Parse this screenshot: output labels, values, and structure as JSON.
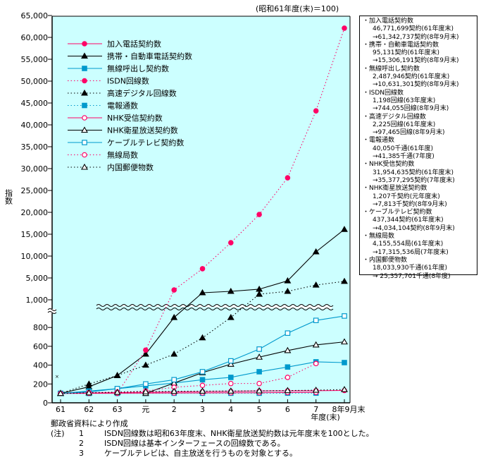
{
  "base_note": "(昭和61年度(末)＝100)",
  "chart_data": {
    "type": "line",
    "title": "",
    "xlabel": "年度(末)",
    "ylabel": "指数",
    "categories": [
      "61",
      "62",
      "63",
      "元",
      "2",
      "3",
      "4",
      "5",
      "6",
      "7",
      "8年9月末"
    ],
    "y_ticks_lower": [
      "0",
      "200",
      "400",
      "600",
      "800"
    ],
    "y_ticks_upper": [
      "1,000",
      "5,000",
      "10,000",
      "15,000",
      "20,000",
      "25,000",
      "30,000",
      "35,000",
      "40,000",
      "45,000",
      "50,000",
      "55,000",
      "60,000",
      "65,000"
    ],
    "y_tick_values_lower": [
      0,
      200,
      400,
      600,
      800
    ],
    "y_tick_values_upper": [
      1000,
      5000,
      10000,
      15000,
      20000,
      25000,
      30000,
      35000,
      40000,
      45000,
      50000,
      55000,
      60000,
      65000
    ],
    "axis_break": "between 900 and 1,000 (broken scale)",
    "ylim": [
      0,
      65000
    ],
    "legend_position": "top-left",
    "series": [
      {
        "name": "加入電話契約数",
        "color": "#ff0066",
        "dash": "solid",
        "marker": "circle",
        "fill": "filled",
        "values": [
          100,
          104,
          108,
          112,
          116,
          119,
          122,
          125,
          127,
          129,
          131
        ]
      },
      {
        "name": "携帯・自動車電話契約数",
        "color": "#000000",
        "dash": "solid",
        "marker": "triangle",
        "fill": "filled",
        "values": [
          100,
          170,
          290,
          517,
          906,
          2290,
          2550,
          2940,
          4480,
          10970,
          16090
        ]
      },
      {
        "name": "無線呼出し契約数",
        "color": "#0099cc",
        "dash": "solid",
        "marker": "square",
        "fill": "filled",
        "values": [
          100,
          125,
          150,
          180,
          210,
          245,
          270,
          330,
          380,
          435,
          427
        ]
      },
      {
        "name": "ISDN回線数",
        "color": "#ff0066",
        "dash": "dotted",
        "marker": "circle",
        "fill": "filled",
        "values": [
          null,
          null,
          100,
          560,
          2800,
          7100,
          13060,
          19500,
          27900,
          43200,
          62108
        ]
      },
      {
        "name": "高速デジタル回線数",
        "color": "#000000",
        "dash": "dotted",
        "marker": "triangle",
        "fill": "filled",
        "values": [
          100,
          200,
          290,
          400,
          517,
          690,
          906,
          2030,
          2550,
          3700,
          4380
        ]
      },
      {
        "name": "電報通数",
        "color": "#0099cc",
        "dash": "dotted",
        "marker": "square",
        "fill": "filled",
        "values": [
          100,
          100,
          101,
          101,
          102,
          102,
          102,
          102,
          103,
          103,
          null
        ]
      },
      {
        "name": "NHK受信契約数",
        "color": "#ff0066",
        "dash": "solid",
        "marker": "circle",
        "fill": "open",
        "values": [
          100,
          101,
          102,
          103,
          104,
          105,
          106,
          107,
          109,
          111,
          null
        ]
      },
      {
        "name": "NHK衛星放送契約数",
        "color": "#000000",
        "dash": "solid",
        "marker": "triangle",
        "fill": "open",
        "values": [
          null,
          null,
          null,
          100,
          210,
          320,
          410,
          485,
          555,
          615,
          647
        ]
      },
      {
        "name": "ケーブルテレビ契約数",
        "color": "#0099cc",
        "dash": "solid",
        "marker": "square",
        "fill": "open",
        "values": [
          100,
          115,
          150,
          200,
          245,
          330,
          445,
          570,
          740,
          875,
          922
        ]
      },
      {
        "name": "無線局数",
        "color": "#ff0066",
        "dash": "dotted",
        "marker": "circle",
        "fill": "open",
        "values": [
          100,
          108,
          115,
          125,
          165,
          185,
          205,
          205,
          270,
          417,
          null
        ]
      },
      {
        "name": "内国郵便物数",
        "color": "#000000",
        "dash": "dotted",
        "marker": "triangle",
        "fill": "open",
        "values": [
          100,
          106,
          112,
          118,
          122,
          124,
          125,
          127,
          130,
          134,
          141
        ]
      }
    ],
    "grid": false
  },
  "axis_mark": "×",
  "side_box": [
    {
      "name": "・加入電話契約数",
      "lines": [
        "46,771,699契約(61年度末)",
        "→61,342,737契約(8年9月末)"
      ]
    },
    {
      "name": "・携帯・自動車電話契約数",
      "lines": [
        "95,131契約(61年度末)",
        "→15,306,191契約(8年9月末)"
      ]
    },
    {
      "name": "・無線呼出し契約数",
      "lines": [
        "2,487,946契約(61年度末)",
        "→10,631,301契約(8年9月末)"
      ]
    },
    {
      "name": "・ISDN回線数",
      "lines": [
        "1,198回線(63年度末)",
        "→744,055回線(8年9月末)"
      ]
    },
    {
      "name": "・高速デジタル回線数",
      "lines": [
        "2,225回線(61年度末)",
        "→97,465回線(8年9月末)"
      ]
    },
    {
      "name": "・電報通数",
      "lines": [
        "40,050千通(61年度)",
        "→41,385千通(7年度)"
      ]
    },
    {
      "name": "・NHK受信契約数",
      "lines": [
        "31,954,635契約(61年度末)",
        "→35,377,295契約(7年度末)"
      ]
    },
    {
      "name": "・NHK衛星放送契約数",
      "lines": [
        "1,207千契約(元年度末)",
        "→7,813千契約(8年9月末)"
      ]
    },
    {
      "name": "・ケーブルテレビ契約数",
      "lines": [
        "437,344契約(61年度末)",
        "→4,034,104契約(8年9月末)"
      ]
    },
    {
      "name": "・無線局数",
      "lines": [
        "4,155,554局(61年度末)",
        "→17,315,536局(7年度末)"
      ]
    },
    {
      "name": "・内国郵便物数",
      "lines": [
        "18,033,930千通(61年度)",
        "→ 25,357,701千通(8年度)"
      ]
    }
  ],
  "notes": {
    "source": "郵政省資料により作成",
    "label": "(注)",
    "items": [
      {
        "num": "1",
        "text": "ISDN回線数は昭和63年度末、NHK衛星放送契約数は元年度末を100とした。"
      },
      {
        "num": "2",
        "text": "ISDN回線は基本インターフェースの回線数である。"
      },
      {
        "num": "3",
        "text": "ケーブルテレビは、自主放送を行うものを対象とする。"
      }
    ]
  }
}
